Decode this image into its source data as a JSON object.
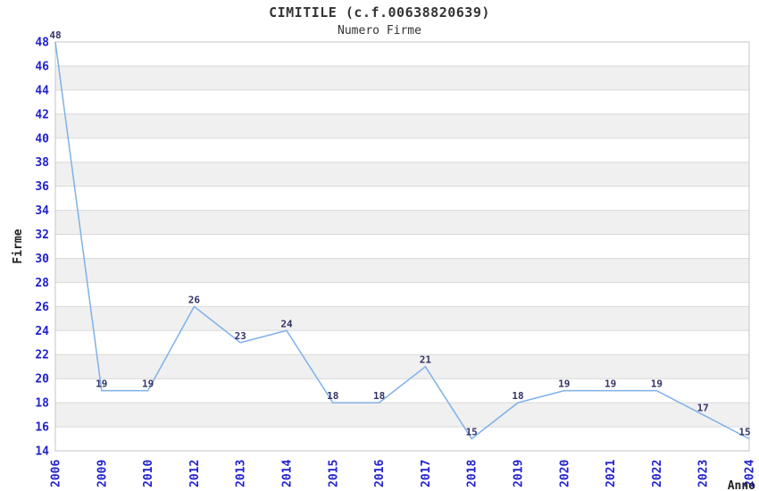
{
  "page": {
    "background": "#ffffff"
  },
  "chart_data": {
    "type": "line",
    "title": "CIMITILE (c.f.00638820639)",
    "subtitle": "Numero Firme",
    "xlabel": "Anno",
    "ylabel": "Firme",
    "x": [
      "2006",
      "2009",
      "2010",
      "2012",
      "2013",
      "2014",
      "2015",
      "2016",
      "2017",
      "2018",
      "2019",
      "2020",
      "2021",
      "2022",
      "2023",
      "2024"
    ],
    "values": [
      48,
      19,
      19,
      26,
      23,
      24,
      18,
      18,
      21,
      15,
      18,
      19,
      19,
      19,
      17,
      15
    ],
    "ylim": [
      14,
      48
    ],
    "ytick_step": 2,
    "grid": true,
    "banded_background": true,
    "legend": "none",
    "point_labels_visible": true,
    "colors": {
      "line": "#7fb1e8",
      "tick_label": "#2222cc",
      "point_label": "#333366",
      "band": "#f0f0f0",
      "gridline": "#d9d9d9",
      "plot_border": "#c4c4c4",
      "heading_text": "#333333",
      "axis_title_text": "#222222"
    }
  }
}
